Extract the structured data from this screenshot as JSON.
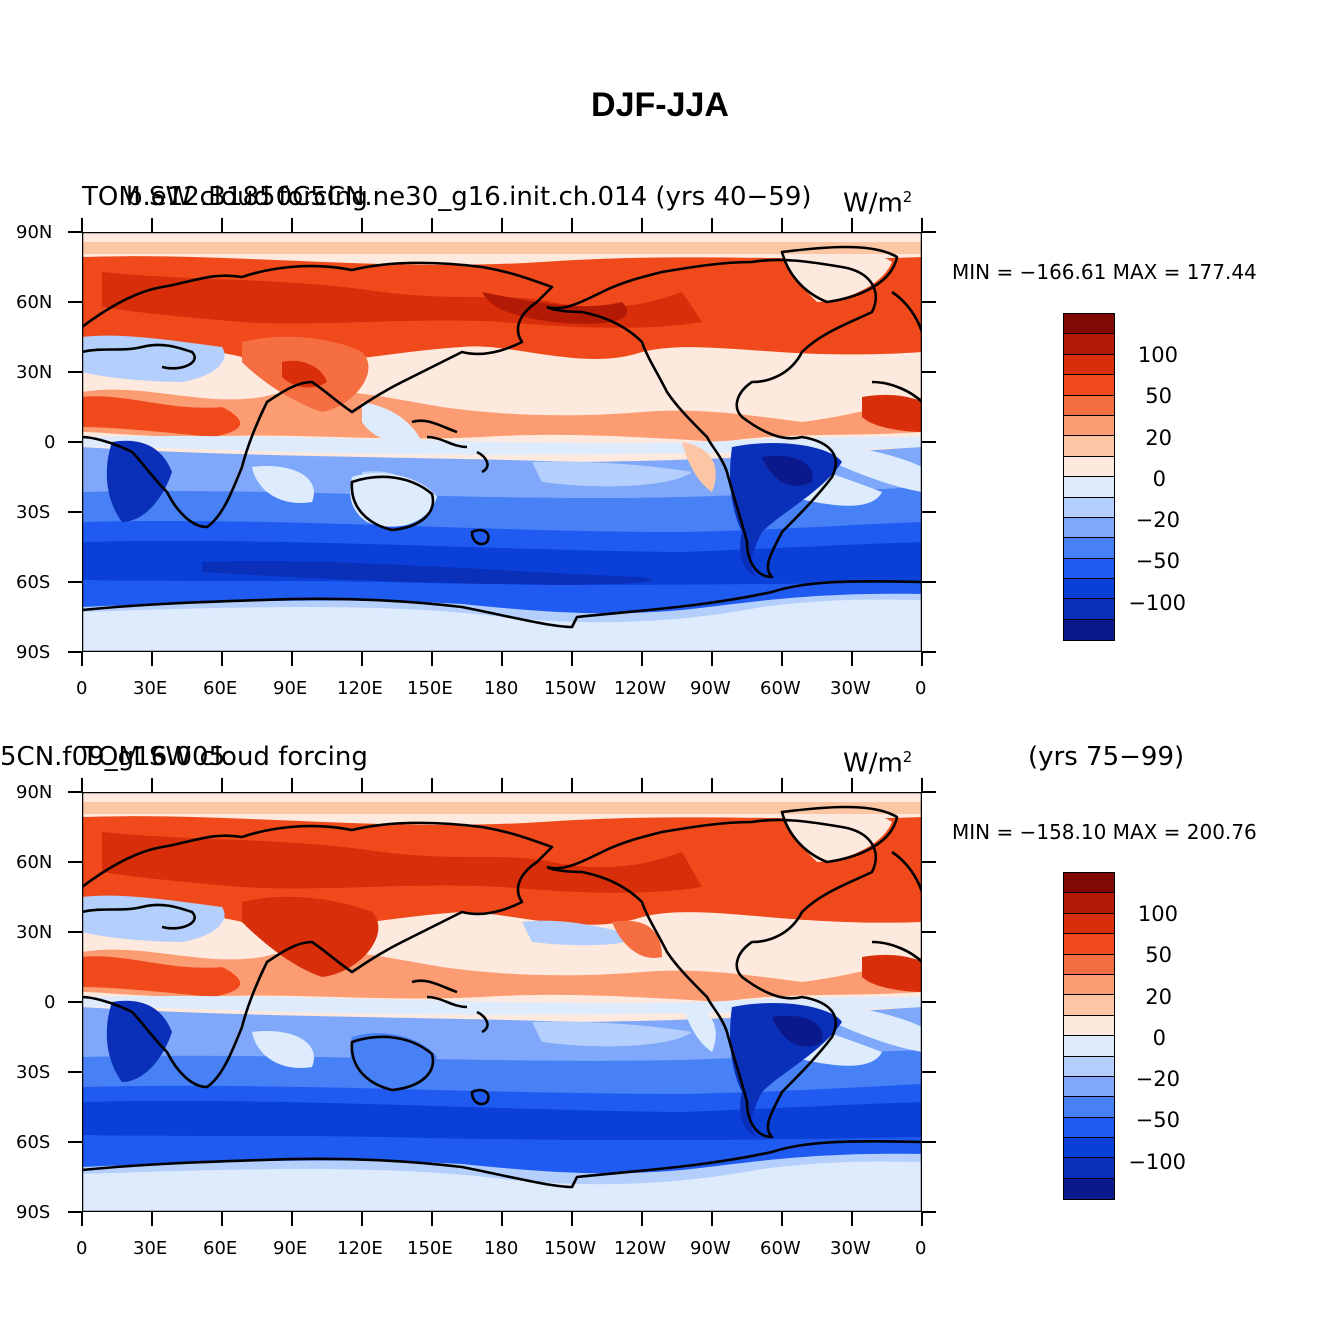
{
  "figure": {
    "title": "DJF-JJA"
  },
  "palette": [
    "#0a1a8c",
    "#0a2fb8",
    "#0b40d8",
    "#1f5bf0",
    "#4880f5",
    "#7fa8fa",
    "#b4cffc",
    "#deebfd",
    "#fde9dd",
    "#fcc5a4",
    "#fb9c72",
    "#f56e42",
    "#f04a1c",
    "#d82e0a",
    "#b21a06",
    "#7f0a05"
  ],
  "colorbar": {
    "labels": [
      "100",
      "50",
      "20",
      "0",
      "−20",
      "−50",
      "−100"
    ]
  },
  "axes": {
    "x_ticks": [
      "0",
      "30E",
      "60E",
      "90E",
      "120E",
      "150E",
      "180",
      "150W",
      "120W",
      "90W",
      "60W",
      "30W",
      "0"
    ],
    "y_ticks": [
      "90N",
      "60N",
      "30N",
      "0",
      "30S",
      "60S",
      "90S"
    ]
  },
  "panels": [
    {
      "title_left_a": "TOM SW cloud forcing",
      "title_left_b": "b.e12.B1850C5CN.ne30_g16.init.ch.014 (yrs 40−59)",
      "units": "W/m",
      "units_sup": "2",
      "min_max": "MIN = −166.61 MAX = 177.44"
    },
    {
      "title_left_a": "5CN.f09_g16.005",
      "title_left_b": "TOM SW cloud forcing",
      "units": "W/m",
      "units_sup": "2",
      "years": "(yrs 75−99)",
      "min_max": "MIN = −158.10 MAX = 200.76"
    }
  ],
  "map_data": {
    "projection": "cylindrical-equidistant",
    "lon_range": [
      0,
      360
    ],
    "lat_range": [
      -90,
      90
    ],
    "field": "TOA shortwave cloud forcing difference DJF minus JJA",
    "contour_levels": [
      -120,
      -100,
      -80,
      -60,
      -50,
      -40,
      -30,
      -20,
      -10,
      0,
      10,
      20,
      30,
      40,
      50,
      60,
      80,
      100,
      120
    ]
  }
}
